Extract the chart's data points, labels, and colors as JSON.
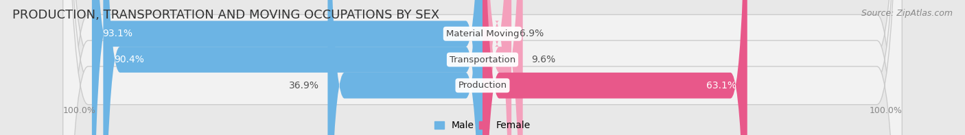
{
  "title": "PRODUCTION, TRANSPORTATION AND MOVING OCCUPATIONS BY SEX",
  "source": "Source: ZipAtlas.com",
  "categories": [
    "Material Moving",
    "Transportation",
    "Production"
  ],
  "male_pct": [
    93.1,
    90.4,
    36.9
  ],
  "female_pct": [
    6.9,
    9.6,
    63.1
  ],
  "male_color": "#6cb4e4",
  "female_color_large": "#e8588a",
  "female_color_small": "#f4a0bc",
  "male_label": "Male",
  "female_label": "Female",
  "bg_color": "#e8e8e8",
  "row_bg_color": "#f2f2f2",
  "row_shadow_color": "#d0d0d0",
  "axis_label_left": "100.0%",
  "axis_label_right": "100.0%",
  "title_fontsize": 13,
  "source_fontsize": 9,
  "bar_label_fontsize": 10,
  "cat_label_fontsize": 9.5,
  "legend_fontsize": 10
}
